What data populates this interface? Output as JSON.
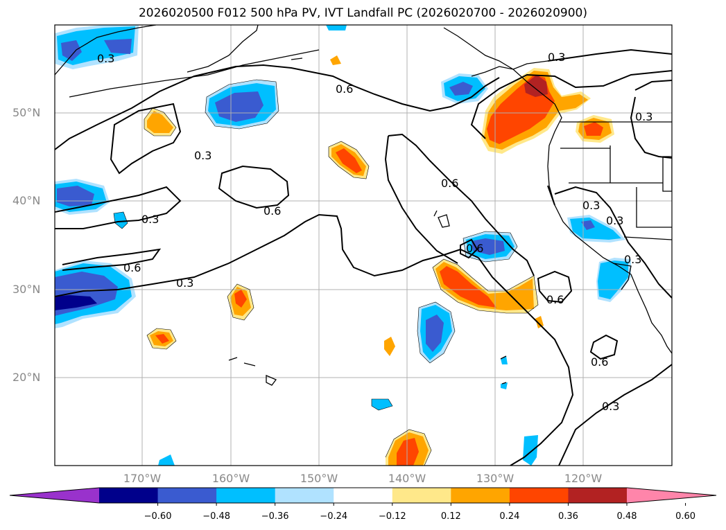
{
  "title": "2026020500 F012 500 hPa PV, IVT Landfall PC (2026020700 - 2026020900)",
  "lat_labels": [
    "50°N",
    "40°N",
    "30°N",
    "20°N"
  ],
  "lon_labels": [
    "170°W",
    "160°W",
    "150°W",
    "140°W",
    "130°W",
    "120°W"
  ],
  "contour_labels": [
    "0.3",
    "0.6",
    "0.3",
    "0.3",
    "0.6",
    "0.3",
    "0.6",
    "0.3",
    "0.6",
    "0.3",
    "0.3",
    "0.3",
    "0.6",
    "0.6",
    "0.3",
    "0.6",
    "0.3"
  ],
  "colorbar": {
    "ticks": [
      "−0.60",
      "−0.48",
      "−0.36",
      "−0.24",
      "−0.12",
      "0.12",
      "0.24",
      "0.36",
      "0.48",
      "0.60"
    ],
    "colors": [
      "#9932cc",
      "#00008b",
      "#3a5bd0",
      "#00bfff",
      "#b0e2ff",
      "#ffffff",
      "#ffe88a",
      "#ffa500",
      "#ff4500",
      "#b22222",
      "#ff85aa"
    ]
  },
  "legend_levels": {
    "neg_strong": "#00008b",
    "neg_mid": "#3a5bd0",
    "neg": "#00bfff",
    "neg_weak": "#b0e2ff",
    "pos_weak": "#ffe88a",
    "pos": "#ffa500",
    "pos_mid": "#ff4500",
    "pos_strong": "#b22222"
  }
}
